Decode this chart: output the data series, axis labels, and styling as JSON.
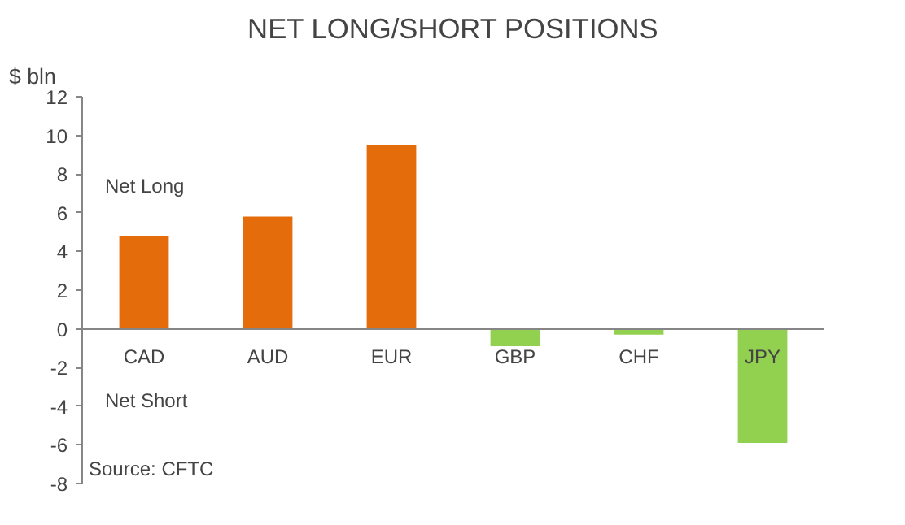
{
  "chart_data": {
    "type": "bar",
    "title": "NET LONG/SHORT POSITIONS",
    "ylabel": "$ bln",
    "categories": [
      "CAD",
      "AUD",
      "EUR",
      "GBP",
      "CHF",
      "JPY"
    ],
    "values": [
      4.8,
      5.8,
      9.5,
      -0.9,
      -0.3,
      -5.9
    ],
    "colors": [
      "#e46c0a",
      "#e46c0a",
      "#e46c0a",
      "#92d050",
      "#92d050",
      "#92d050"
    ],
    "ylim": [
      -8,
      12
    ],
    "yticks": [
      -8,
      -6,
      -4,
      -2,
      0,
      2,
      4,
      6,
      8,
      10,
      12
    ],
    "annotations": [
      "Net Long",
      "Net Short",
      "Source: CFTC"
    ],
    "grid": false
  }
}
